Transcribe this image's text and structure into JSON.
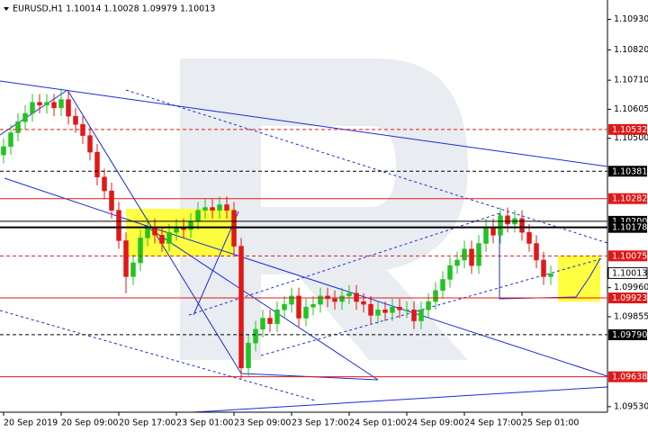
{
  "chart_data": {
    "type": "candlestick",
    "title": "EURUSD,H1  1.10014 1.10028 1.09979 1.10013",
    "categories": [
      "20 Sep 2019",
      null,
      null,
      null,
      null,
      null,
      null,
      null,
      "20 Sep 09:00",
      null,
      null,
      null,
      null,
      null,
      null,
      null,
      "20 Sep 17:00",
      null,
      null,
      null,
      null,
      null,
      null,
      null,
      "23 Sep 01:00",
      null,
      null,
      null,
      null,
      null,
      null,
      null,
      "23 Sep 09:00",
      null,
      null,
      null,
      null,
      null,
      null,
      null,
      "23 Sep 17:00",
      null,
      null,
      null,
      null,
      null,
      null,
      null,
      "24 Sep 01:00",
      null,
      null,
      null,
      null,
      null,
      null,
      null,
      "24 Sep 09:00",
      null,
      null,
      null,
      null,
      null,
      null,
      null,
      "24 Sep 17:00",
      null,
      null,
      null,
      null,
      null,
      null,
      null,
      "25 Sep 01:00",
      null,
      null,
      null,
      null
    ],
    "open": [
      1.1044,
      1.1047,
      1.1052,
      1.1056,
      1.1059,
      1.1063,
      1.1062,
      1.1063,
      1.1061,
      1.1064,
      1.1058,
      1.1055,
      1.1051,
      1.1045,
      1.1036,
      1.1031,
      1.1024,
      1.1013,
      1.1,
      1.1005,
      1.1014,
      1.1018,
      1.1015,
      1.1012,
      1.1016,
      1.1018,
      1.1017,
      1.102,
      1.1024,
      1.1025,
      1.1024,
      1.1026,
      1.1024,
      1.1011,
      1.0967,
      1.0976,
      1.0981,
      1.0985,
      1.0983,
      1.0988,
      1.099,
      1.0993,
      1.0985,
      1.0989,
      1.099,
      1.0993,
      1.0992,
      1.0991,
      1.0993,
      1.0994,
      1.0991,
      1.099,
      1.0986,
      1.0988,
      1.0987,
      1.0989,
      1.0988,
      1.0988,
      1.0984,
      1.0988,
      1.0991,
      1.0995,
      1.0999,
      1.1004,
      1.1006,
      1.101,
      1.1004,
      1.1012,
      1.1018,
      1.1015,
      1.1022,
      1.1019,
      1.1021,
      1.1016,
      1.1012,
      1.1006,
      1.1
    ],
    "high": [
      1.105,
      1.1055,
      1.1059,
      1.1062,
      1.1066,
      1.1066,
      1.1066,
      1.1066,
      1.1068,
      1.1067,
      1.1061,
      1.1058,
      1.1054,
      1.1048,
      1.1039,
      1.1034,
      1.1027,
      1.1016,
      1.1008,
      1.1017,
      1.1021,
      1.1021,
      1.1018,
      1.1019,
      1.1021,
      1.1021,
      1.1023,
      1.1027,
      1.1028,
      1.1028,
      1.1029,
      1.1029,
      1.1027,
      1.1014,
      1.0979,
      1.0984,
      1.0988,
      1.0988,
      1.0991,
      1.0993,
      1.0996,
      1.0996,
      1.0992,
      1.0993,
      1.0996,
      1.0996,
      1.0995,
      1.0996,
      1.0997,
      1.0997,
      1.0994,
      1.0993,
      1.0991,
      1.0991,
      1.0992,
      1.0992,
      1.0991,
      1.0991,
      1.0991,
      1.0994,
      1.0998,
      1.1002,
      1.1007,
      1.1009,
      1.1013,
      1.1013,
      1.1015,
      1.1021,
      1.1021,
      1.1025,
      1.1025,
      1.1024,
      1.1024,
      1.1019,
      1.1015,
      1.1009,
      1.1004
    ],
    "low": [
      1.1041,
      1.1044,
      1.1049,
      1.1053,
      1.1056,
      1.1059,
      1.1059,
      1.1058,
      1.1058,
      1.1055,
      1.1052,
      1.1048,
      1.1042,
      1.1033,
      1.1028,
      1.1021,
      1.101,
      1.0994,
      1.0997,
      1.1002,
      1.1011,
      1.1012,
      1.1009,
      1.1009,
      1.1013,
      1.1014,
      1.1014,
      1.1017,
      1.1021,
      1.1021,
      1.1021,
      1.1021,
      1.1008,
      1.0963,
      1.0964,
      1.0973,
      1.0978,
      1.098,
      1.098,
      1.0985,
      1.0987,
      1.0982,
      1.0982,
      1.0986,
      1.0987,
      1.0989,
      1.0988,
      1.0988,
      1.099,
      1.0988,
      1.0987,
      1.0983,
      1.0983,
      1.0984,
      1.0984,
      1.0985,
      1.0985,
      1.0981,
      1.0981,
      1.0985,
      1.0988,
      1.0992,
      1.0996,
      1.1001,
      1.1003,
      1.1001,
      1.1001,
      1.1009,
      1.1012,
      1.1012,
      1.1016,
      1.1016,
      1.1013,
      1.1009,
      1.1003,
      1.0997,
      1.0997
    ],
    "close": [
      1.1047,
      1.1052,
      1.1056,
      1.1059,
      1.1063,
      1.1062,
      1.1063,
      1.1061,
      1.1064,
      1.1058,
      1.1055,
      1.1051,
      1.1045,
      1.1036,
      1.1031,
      1.1024,
      1.1013,
      1.1,
      1.1005,
      1.1014,
      1.1018,
      1.1015,
      1.1012,
      1.1016,
      1.1018,
      1.1017,
      1.102,
      1.1024,
      1.1025,
      1.1024,
      1.1026,
      1.1024,
      1.1011,
      1.0967,
      1.0976,
      1.0981,
      1.0985,
      1.0983,
      1.0988,
      1.099,
      1.0993,
      1.0985,
      1.0989,
      1.099,
      1.0993,
      1.0992,
      1.0991,
      1.0993,
      1.0994,
      1.0991,
      1.099,
      1.0986,
      1.0988,
      1.0987,
      1.0989,
      1.0988,
      1.0988,
      1.0984,
      1.0988,
      1.0991,
      1.0995,
      1.0999,
      1.1004,
      1.1006,
      1.101,
      1.1004,
      1.1012,
      1.1018,
      1.1015,
      1.1022,
      1.1019,
      1.1021,
      1.1016,
      1.1012,
      1.1006,
      1.1,
      1.1001
    ],
    "up_color": "#22c322",
    "down_color": "#e01818",
    "ylim": [
      1.0951,
      1.11
    ],
    "yticks": [
      {
        "value": 1.1093,
        "label": "1.10930"
      },
      {
        "value": 1.1082,
        "label": "1.10820"
      },
      {
        "value": 1.1071,
        "label": "1.10710"
      },
      {
        "value": 1.10605,
        "label": "1.10605"
      },
      {
        "value": 1.105,
        "label": "1.10500"
      },
      {
        "value": 1.0996,
        "label": "1.09960"
      },
      {
        "value": 1.09855,
        "label": "1.09855"
      },
      {
        "value": 1.0953,
        "label": "1.09530"
      }
    ],
    "levels": [
      {
        "value": 1.10532,
        "label": "1.10532",
        "color": "#e01818",
        "dashed": true
      },
      {
        "value": 1.10381,
        "label": "1.10381",
        "color": "#000000",
        "dashed": true
      },
      {
        "value": 1.10282,
        "label": "1.10282",
        "color": "#e01818",
        "dashed": false
      },
      {
        "value": 1.102,
        "label": "1.10200",
        "color": "#000000",
        "dashed": false
      },
      {
        "value": 1.10178,
        "label": "1.10178",
        "color": "#000000",
        "dashed": false
      },
      {
        "value": 1.10075,
        "label": "1.10075",
        "color": "#e01818",
        "dashed": true
      },
      {
        "value": 1.09923,
        "label": "1.09923",
        "color": "#e01818",
        "dashed": false
      },
      {
        "value": 1.0979,
        "label": "1.09790",
        "color": "#000000",
        "dashed": true
      },
      {
        "value": 1.09638,
        "label": "1.09638",
        "color": "#e01818",
        "dashed": false
      }
    ],
    "last_price": {
      "value": 1.10013,
      "label": "1.10013"
    },
    "grid": false
  }
}
